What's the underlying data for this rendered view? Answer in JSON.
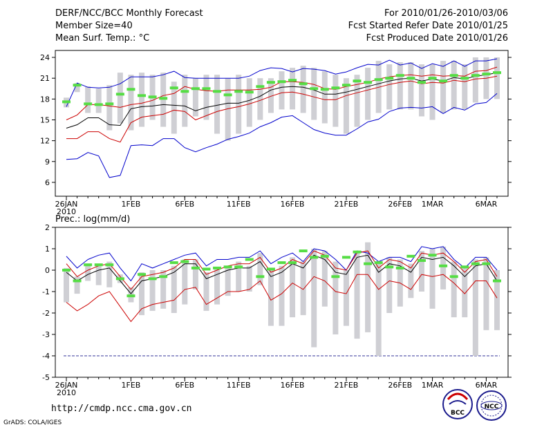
{
  "header": {
    "title": "DERF/NCC/BCC Monthly Forecast",
    "member_size": "Member Size=40",
    "variable": "Mean Surf. Temp.: °C",
    "period": "For 2010/01/26-2010/03/06",
    "started": "Fcst Started Refer Date 2010/01/25",
    "produced": "Fcst Produced Date 2010/01/26"
  },
  "footer": {
    "url": "http://cmdp.ncc.cma.gov.cn",
    "grads": "GrADS: COLA/IGES",
    "logo_bcc": "BCC",
    "logo_ncc": "NCC"
  },
  "colors": {
    "blue": "#0000cc",
    "red": "#cc0000",
    "black": "#000000",
    "box": "#cfcfd4",
    "green": "#55dd44",
    "dash": "#333399"
  },
  "chart_data": [
    {
      "type": "box-and-line",
      "title": "Mean Surf. Temp.: °C",
      "ylim": [
        4,
        25
      ],
      "yticks": [
        6,
        9,
        12,
        15,
        18,
        21,
        24
      ],
      "days": 41,
      "xtick_labels": [
        {
          "day": 0,
          "label": "26JAN",
          "sub": "2010"
        },
        {
          "day": 6,
          "label": "1FEB"
        },
        {
          "day": 11,
          "label": "6FEB"
        },
        {
          "day": 16,
          "label": "11FEB"
        },
        {
          "day": 21,
          "label": "16FEB"
        },
        {
          "day": 26,
          "label": "21FEB"
        },
        {
          "day": 31,
          "label": "26FEB"
        },
        {
          "day": 34,
          "label": "1MAR"
        },
        {
          "day": 39,
          "label": "6MAR"
        }
      ],
      "series": [
        {
          "name": "max",
          "color": "#0000cc",
          "values": [
            9.3,
            9.4,
            10.3,
            9.8,
            6.7,
            7.0,
            11.3,
            11.4,
            11.3,
            12.3,
            12.3,
            11.0,
            10.4,
            11.0,
            11.5,
            12.2,
            12.6,
            13.1,
            14.0,
            14.6,
            15.4,
            15.6,
            14.6,
            13.6,
            13.1,
            12.8,
            12.8,
            13.7,
            14.7,
            15.1,
            16.2,
            16.7,
            16.8,
            16.7,
            16.9,
            15.9,
            16.8,
            16.4,
            17.3,
            17.5,
            18.8
          ]
        },
        {
          "name": "mean+sd",
          "color": "#cc0000",
          "values": [
            15.0,
            15.7,
            17.2,
            17.2,
            17.0,
            16.8,
            17.2,
            17.4,
            17.8,
            18.5,
            18.8,
            19.8,
            19.4,
            19.2,
            19.1,
            19.3,
            19.3,
            19.3,
            19.4,
            19.7,
            20.5,
            20.5,
            20.4,
            20.1,
            19.5,
            19.4,
            19.8,
            20.1,
            20.4,
            20.9,
            21.2,
            21.4,
            21.5,
            21.3,
            21.5,
            21.3,
            21.4,
            21.3,
            22.0,
            22.1,
            22.6
          ]
        },
        {
          "name": "mean",
          "color": "#000000",
          "values": [
            13.8,
            14.3,
            15.3,
            15.3,
            14.3,
            14.2,
            16.6,
            16.9,
            17.0,
            17.2,
            17.1,
            17.0,
            16.3,
            16.8,
            17.1,
            17.4,
            17.4,
            17.8,
            18.4,
            19.3,
            19.7,
            19.8,
            19.7,
            19.3,
            18.7,
            18.7,
            19.0,
            19.4,
            19.8,
            20.2,
            20.6,
            20.9,
            21.0,
            20.6,
            20.9,
            20.6,
            21.1,
            20.9,
            21.3,
            21.5,
            21.8
          ]
        },
        {
          "name": "mean-sd",
          "color": "#cc0000",
          "values": [
            12.3,
            12.3,
            13.3,
            13.3,
            12.3,
            11.8,
            14.6,
            15.4,
            15.6,
            15.8,
            16.4,
            16.2,
            15.0,
            15.6,
            16.2,
            16.6,
            16.9,
            17.3,
            17.8,
            18.4,
            18.9,
            19.0,
            18.7,
            18.3,
            17.9,
            17.9,
            18.5,
            18.9,
            19.3,
            19.7,
            20.1,
            20.4,
            20.6,
            20.2,
            20.4,
            20.3,
            20.7,
            20.5,
            20.9,
            21.0,
            21.3
          ]
        },
        {
          "name": "min",
          "color": "#0000cc",
          "values": [
            null,
            null,
            null,
            null,
            null,
            null,
            null,
            null,
            null,
            null,
            null,
            null,
            null,
            null,
            null,
            null,
            null,
            null,
            null,
            null,
            null,
            null,
            null,
            null,
            null,
            null,
            null,
            null,
            null,
            null,
            null,
            null,
            null,
            null,
            null,
            null,
            null,
            null,
            null,
            null,
            null
          ]
        },
        {
          "name": "upper-envelope",
          "color": "#0000cc",
          "values": [
            16.9,
            20.3,
            19.7,
            19.6,
            19.7,
            20.2,
            21.2,
            21.2,
            21.2,
            21.5,
            22.0,
            21.1,
            21.0,
            21.0,
            21.0,
            21.0,
            21.0,
            21.3,
            22.1,
            22.5,
            22.4,
            21.9,
            22.4,
            22.3,
            22.1,
            21.6,
            21.9,
            22.5,
            23.0,
            22.9,
            23.6,
            22.9,
            23.2,
            22.4,
            23.1,
            22.7,
            23.5,
            22.7,
            23.5,
            23.5,
            23.8
          ]
        }
      ],
      "boxes": {
        "low": [
          16.8,
          19.0,
          16.0,
          16.0,
          13.5,
          14.5,
          13.5,
          14.0,
          15.0,
          14.0,
          13.0,
          14.0,
          15.5,
          15.0,
          13.0,
          12.0,
          13.0,
          14.0,
          15.0,
          16.0,
          16.5,
          16.5,
          16.0,
          15.0,
          14.5,
          14.0,
          13.0,
          14.0,
          15.0,
          16.0,
          16.5,
          16.5,
          16.5,
          15.5,
          15.0,
          16.0,
          16.5,
          16.5,
          17.5,
          18.0,
          18.0
        ],
        "high": [
          18.2,
          20.3,
          19.8,
          19.5,
          20.0,
          21.8,
          21.5,
          21.8,
          21.5,
          21.8,
          20.5,
          21.5,
          21.0,
          21.5,
          21.5,
          21.0,
          21.5,
          21.0,
          21.0,
          21.0,
          22.0,
          22.5,
          22.8,
          22.5,
          22.0,
          21.5,
          21.0,
          21.5,
          22.5,
          23.5,
          23.0,
          23.3,
          23.3,
          23.0,
          23.0,
          23.5,
          23.5,
          23.0,
          24.0,
          24.0,
          24.0
        ]
      },
      "obs": [
        17.6,
        20.0,
        17.3,
        17.2,
        17.3,
        18.7,
        19.4,
        18.5,
        18.3,
        18.1,
        19.6,
        19.1,
        19.5,
        19.5,
        19.1,
        18.6,
        19.1,
        19.0,
        19.8,
        20.4,
        20.5,
        20.7,
        20.2,
        19.5,
        19.4,
        19.6,
        20.0,
        20.6,
        20.4,
        20.8,
        21.0,
        21.4,
        21.0,
        20.4,
        21.0,
        20.6,
        21.4,
        21.0,
        21.4,
        21.6,
        21.8
      ]
    },
    {
      "type": "box-and-line",
      "title": "Prec.: log(mm/d)",
      "ylim": [
        -5,
        2
      ],
      "yticks": [
        -5,
        -4,
        -3,
        -2,
        -1,
        0,
        1,
        2
      ],
      "days": 41,
      "reference_line": -4,
      "xtick_labels": [
        {
          "day": 0,
          "label": "26JAN",
          "sub": "2010"
        },
        {
          "day": 6,
          "label": "1FEB"
        },
        {
          "day": 11,
          "label": "6FEB"
        },
        {
          "day": 16,
          "label": "11FEB"
        },
        {
          "day": 21,
          "label": "16FEB"
        },
        {
          "day": 26,
          "label": "21FEB"
        },
        {
          "day": 31,
          "label": "26FEB"
        },
        {
          "day": 34,
          "label": "1MAR"
        },
        {
          "day": 39,
          "label": "6MAR"
        }
      ],
      "series": [
        {
          "name": "max",
          "color": "#0000cc",
          "values": [
            0.65,
            0.1,
            0.5,
            0.7,
            0.8,
            0.1,
            -0.5,
            0.3,
            0.1,
            0.3,
            0.5,
            0.7,
            0.8,
            0.2,
            0.5,
            0.5,
            0.6,
            0.6,
            0.9,
            0.3,
            0.6,
            0.8,
            0.4,
            1.0,
            0.9,
            0.5,
            0.0,
            0.9,
            0.8,
            0.4,
            0.6,
            0.6,
            0.4,
            1.1,
            1.0,
            1.1,
            0.5,
            0.1,
            0.6,
            0.6,
            0.0
          ]
        },
        {
          "name": "mean",
          "color": "#000000",
          "values": [
            -0.1,
            -0.5,
            -0.2,
            0.0,
            0.1,
            -0.5,
            -1.1,
            -0.5,
            -0.4,
            -0.3,
            -0.1,
            0.3,
            0.3,
            -0.4,
            -0.2,
            0.0,
            0.1,
            0.1,
            0.4,
            -0.3,
            -0.1,
            0.3,
            0.1,
            0.7,
            0.5,
            -0.1,
            -0.2,
            0.6,
            0.7,
            -0.1,
            0.3,
            0.2,
            -0.1,
            0.6,
            0.5,
            0.6,
            0.2,
            -0.3,
            0.2,
            0.3,
            -0.5
          ]
        },
        {
          "name": "mean+sd",
          "color": "#cc0000",
          "values": [
            0.3,
            -0.3,
            0.0,
            0.2,
            0.3,
            -0.3,
            -0.9,
            -0.3,
            -0.2,
            -0.1,
            0.1,
            0.5,
            0.5,
            -0.2,
            0.0,
            0.2,
            0.3,
            0.3,
            0.6,
            -0.1,
            0.1,
            0.5,
            0.3,
            0.9,
            0.7,
            0.1,
            0.0,
            0.8,
            0.9,
            0.1,
            0.5,
            0.4,
            0.1,
            0.8,
            0.7,
            0.8,
            0.4,
            -0.1,
            0.4,
            0.5,
            -0.3
          ]
        },
        {
          "name": "mean-sd",
          "color": "#cc0000",
          "values": [
            -1.5,
            -1.9,
            -1.6,
            -1.2,
            -1.0,
            -1.7,
            -2.4,
            -1.8,
            -1.6,
            -1.5,
            -1.4,
            -0.9,
            -0.8,
            -1.6,
            -1.3,
            -1.0,
            -1.0,
            -0.9,
            -0.5,
            -1.4,
            -1.1,
            -0.6,
            -0.9,
            -0.3,
            -0.5,
            -1.0,
            -1.1,
            -0.2,
            -0.2,
            -0.9,
            -0.5,
            -0.6,
            -0.9,
            -0.2,
            -0.3,
            -0.2,
            -0.6,
            -1.1,
            -0.5,
            -0.5,
            -1.3
          ]
        }
      ],
      "boxes": {
        "low": [
          -1.5,
          -1.1,
          -0.5,
          -0.7,
          -0.8,
          -0.6,
          -1.5,
          -2.1,
          -1.9,
          -1.8,
          -2.0,
          -1.6,
          -0.9,
          -1.9,
          -1.6,
          -1.2,
          -1.0,
          -1.0,
          -0.7,
          -2.6,
          -2.6,
          -2.2,
          -2.1,
          -3.6,
          -1.7,
          -3.0,
          -2.6,
          -3.2,
          -2.9,
          -4.0,
          -2.0,
          -1.7,
          -1.3,
          -1.0,
          -1.8,
          -0.9,
          -2.2,
          -2.2,
          -4.0,
          -2.8,
          -2.8
        ],
        "high": [
          0.1,
          -0.3,
          0.3,
          0.3,
          0.4,
          -0.2,
          -0.8,
          -0.1,
          0.0,
          0.0,
          0.2,
          0.5,
          0.5,
          -0.1,
          0.1,
          0.2,
          0.4,
          0.2,
          0.8,
          0.1,
          0.2,
          0.6,
          0.4,
          1.0,
          0.9,
          0.4,
          0.0,
          0.9,
          1.3,
          0.3,
          0.6,
          0.5,
          0.3,
          0.9,
          1.0,
          1.1,
          0.4,
          0.1,
          0.5,
          0.6,
          0.0
        ]
      },
      "obs": [
        0.0,
        -0.5,
        0.25,
        0.25,
        0.25,
        -0.4,
        -1.2,
        -0.2,
        -0.4,
        -0.3,
        0.35,
        0.4,
        0.1,
        0.05,
        0.1,
        0.15,
        0.15,
        0.5,
        -0.3,
        0.05,
        0.35,
        0.35,
        0.9,
        0.6,
        0.65,
        -0.3,
        0.6,
        0.85,
        0.3,
        0.35,
        0.15,
        0.1,
        0.65,
        0.45,
        0.7,
        0.2,
        -0.3,
        0.15,
        0.3,
        0.3,
        -0.5
      ]
    }
  ]
}
